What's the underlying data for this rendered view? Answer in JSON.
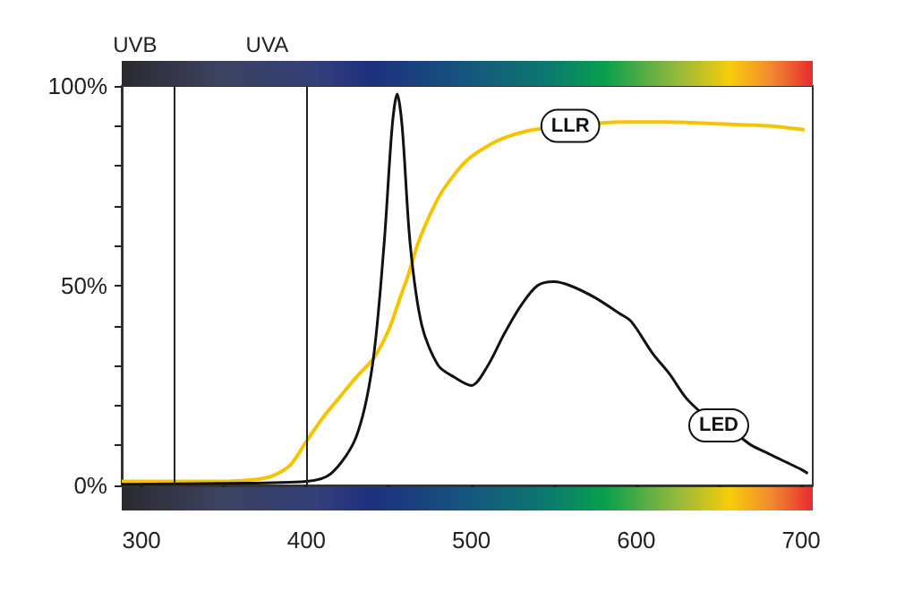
{
  "chart_data": {
    "type": "line",
    "xlim": [
      288,
      707
    ],
    "ylim": [
      0,
      100
    ],
    "xticks": [
      300,
      {
        "value": 350,
        "label": null
      },
      400,
      {
        "value": 450,
        "label": null
      },
      500,
      {
        "value": 550,
        "label": null
      },
      600,
      {
        "value": 650,
        "label": null
      },
      700
    ],
    "yticks": [
      {
        "value": 0,
        "label": "0%"
      },
      {
        "value": 10,
        "label": null
      },
      {
        "value": 20,
        "label": null
      },
      {
        "value": 30,
        "label": null
      },
      {
        "value": 40,
        "label": null
      },
      {
        "value": 50,
        "label": "50%"
      },
      {
        "value": 60,
        "label": null
      },
      {
        "value": 70,
        "label": null
      },
      {
        "value": 80,
        "label": null
      },
      {
        "value": 90,
        "label": null
      },
      {
        "value": 100,
        "label": "100%"
      }
    ],
    "grid": false,
    "legend": false,
    "marker": "none",
    "line_style": "solid",
    "ref_lines": [
      {
        "axis": "x",
        "value": 320,
        "label": "UVB"
      },
      {
        "axis": "x",
        "value": 400,
        "label": "UVA"
      }
    ],
    "series": [
      {
        "name": "LLR",
        "color": "#f5c400",
        "x": [
          288,
          320,
          350,
          370,
          380,
          390,
          400,
          410,
          420,
          430,
          441,
          450,
          456,
          462,
          468,
          480,
          490,
          499,
          510,
          520,
          537,
          560,
          590,
          620,
          650,
          680,
          702
        ],
        "values": [
          1,
          1,
          1,
          1.5,
          2.5,
          5,
          11,
          17,
          22,
          27,
          32,
          39,
          46,
          53,
          61,
          72,
          78,
          82,
          85,
          87,
          89,
          90,
          91,
          91,
          90.5,
          90,
          89
        ]
      },
      {
        "name": "LED",
        "color": "#111111",
        "x": [
          288,
          350,
          400,
          415,
          430,
          440,
          447,
          452,
          455,
          458,
          463,
          470,
          480,
          490,
          500,
          510,
          520,
          530,
          540,
          550,
          560,
          575,
          590,
          597,
          610,
          620,
          630,
          640,
          650,
          660,
          670,
          680,
          690,
          700,
          704
        ],
        "values": [
          0.3,
          0.5,
          1,
          3,
          12,
          30,
          60,
          90,
          98,
          90,
          60,
          40,
          30,
          27,
          25,
          30,
          38,
          45,
          50,
          51,
          50,
          47,
          43,
          41,
          33,
          28,
          22,
          18,
          15,
          13,
          10,
          8,
          6,
          4,
          3
        ]
      }
    ]
  }
}
